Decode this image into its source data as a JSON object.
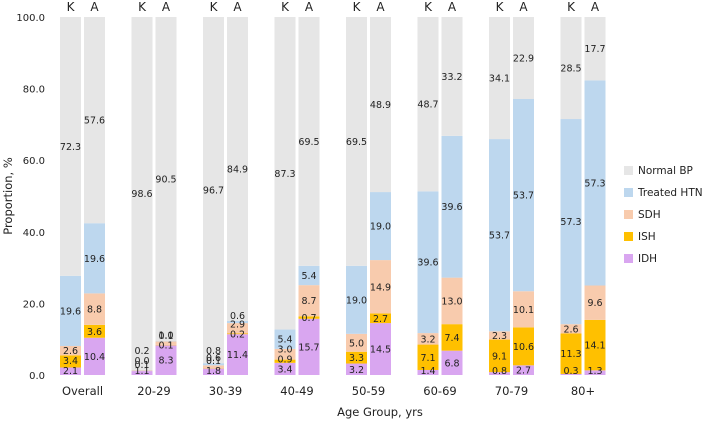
{
  "chart_data": {
    "type": "bar",
    "stacked": true,
    "ylabel": "Proportion, %",
    "xlabel": "Age Group, yrs",
    "ylim": [
      0,
      100
    ],
    "yticks": [
      "0.0",
      "20.0",
      "40.0",
      "60.0",
      "80.0",
      "100.0"
    ],
    "bar_labels": [
      "K",
      "A"
    ],
    "categories": [
      "Overall",
      "20-29",
      "30-39",
      "40-49",
      "50-59",
      "60-69",
      "70-79",
      "80+"
    ],
    "series_order": [
      "IDH",
      "ISH",
      "SDH",
      "Treated HTN",
      "Normal BP"
    ],
    "legend": [
      "Normal BP",
      "Treated HTN",
      "SDH",
      "ISH",
      "IDH"
    ],
    "colors": {
      "Normal BP": "#e6e6e6",
      "Treated HTN": "#bdd7ee",
      "SDH": "#f8cbad",
      "ISH": "#ffc000",
      "IDH": "#d9a6f0"
    },
    "groups": [
      {
        "name": "Overall",
        "K": {
          "IDH": 2.1,
          "ISH": 3.4,
          "SDH": 2.6,
          "Treated HTN": 19.6,
          "Normal BP": 72.3
        },
        "A": {
          "IDH": 10.4,
          "ISH": 3.6,
          "SDH": 8.8,
          "Treated HTN": 19.6,
          "Normal BP": 57.6
        }
      },
      {
        "name": "20-29",
        "K": {
          "IDH": 1.1,
          "ISH": 0.0,
          "SDH": 0.2,
          "Treated HTN": 0.1,
          "Normal BP": 98.6
        },
        "A": {
          "IDH": 8.3,
          "ISH": 0.1,
          "SDH": 1.0,
          "Treated HTN": 0.1,
          "Normal BP": 90.5
        }
      },
      {
        "name": "30-39",
        "K": {
          "IDH": 1.8,
          "ISH": 0.1,
          "SDH": 0.8,
          "Treated HTN": 0.6,
          "Normal BP": 96.7
        },
        "A": {
          "IDH": 11.4,
          "ISH": 0.2,
          "SDH": 2.9,
          "Treated HTN": 0.6,
          "Normal BP": 84.9
        }
      },
      {
        "name": "40-49",
        "K": {
          "IDH": 3.4,
          "ISH": 0.9,
          "SDH": 3.0,
          "Treated HTN": 5.4,
          "Normal BP": 87.3
        },
        "A": {
          "IDH": 15.7,
          "ISH": 0.7,
          "SDH": 8.7,
          "Treated HTN": 5.4,
          "Normal BP": 69.5
        }
      },
      {
        "name": "50-59",
        "K": {
          "IDH": 3.2,
          "ISH": 3.3,
          "SDH": 5.0,
          "Treated HTN": 19.0,
          "Normal BP": 69.5
        },
        "A": {
          "IDH": 14.5,
          "ISH": 2.7,
          "SDH": 14.9,
          "Treated HTN": 19.0,
          "Normal BP": 48.9
        }
      },
      {
        "name": "60-69",
        "K": {
          "IDH": 1.4,
          "ISH": 7.1,
          "SDH": 3.2,
          "Treated HTN": 39.6,
          "Normal BP": 48.7
        },
        "A": {
          "IDH": 6.8,
          "ISH": 7.4,
          "SDH": 13.0,
          "Treated HTN": 39.6,
          "Normal BP": 33.2
        }
      },
      {
        "name": "70-79",
        "K": {
          "IDH": 0.8,
          "ISH": 9.1,
          "SDH": 2.3,
          "Treated HTN": 53.7,
          "Normal BP": 34.1
        },
        "A": {
          "IDH": 2.7,
          "ISH": 10.6,
          "SDH": 10.1,
          "Treated HTN": 53.7,
          "Normal BP": 22.9
        }
      },
      {
        "name": "80+",
        "K": {
          "IDH": 0.3,
          "ISH": 11.3,
          "SDH": 2.6,
          "Treated HTN": 57.3,
          "Normal BP": 28.5
        },
        "A": {
          "IDH": 1.3,
          "ISH": 14.1,
          "SDH": 9.6,
          "Treated HTN": 57.3,
          "Normal BP": 17.7
        }
      }
    ]
  }
}
